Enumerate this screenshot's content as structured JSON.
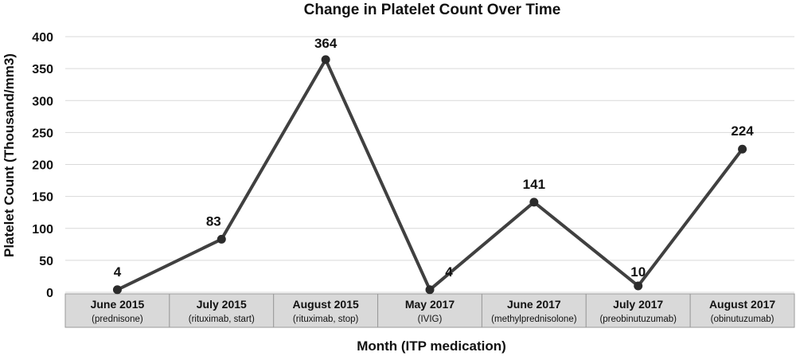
{
  "chart_data": {
    "type": "line",
    "title": "Change in Platelet Count Over Time",
    "xlabel": "Month (ITP medication)",
    "ylabel": "Platelet Count  (Thousand/mm3)",
    "ylim": [
      0,
      400
    ],
    "yticks": [
      0,
      50,
      100,
      150,
      200,
      250,
      300,
      350,
      400
    ],
    "grid": true,
    "categories": [
      {
        "label": "June 2015",
        "sub": "(prednisone)"
      },
      {
        "label": "July 2015",
        "sub": "(rituximab, start)"
      },
      {
        "label": "August 2015",
        "sub": "(rituximab, stop)"
      },
      {
        "label": "May 2017",
        "sub": "(IVIG)"
      },
      {
        "label": "June 2017",
        "sub": "(methylprednisolone)"
      },
      {
        "label": "July 2017",
        "sub": "(preobinutuzumab)"
      },
      {
        "label": "August 2017",
        "sub": "(obinutuzumab)"
      }
    ],
    "series": [
      {
        "values": [
          4,
          83,
          364,
          4,
          141,
          10,
          224
        ],
        "color": "#404040"
      }
    ],
    "data_labels": [
      "4",
      "83",
      "364",
      "4",
      "141",
      "10",
      "224"
    ]
  }
}
